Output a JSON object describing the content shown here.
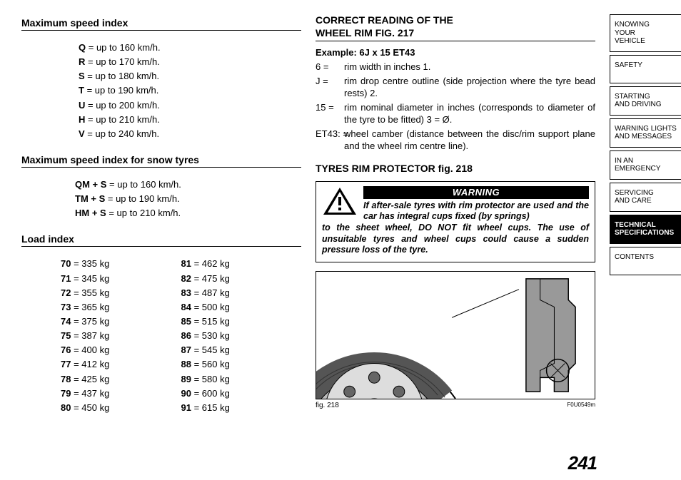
{
  "left": {
    "speed_title": "Maximum speed index",
    "speeds": [
      {
        "c": "Q",
        "v": "= up to 160 km/h."
      },
      {
        "c": "R",
        "v": "= up to 170 km/h."
      },
      {
        "c": "S",
        "v": "= up to 180 km/h."
      },
      {
        "c": "T",
        "v": "= up to 190 km/h."
      },
      {
        "c": "U",
        "v": "= up to 200 km/h."
      },
      {
        "c": "H",
        "v": "= up to 210 km/h."
      },
      {
        "c": "V",
        "v": "= up to 240 km/h."
      }
    ],
    "snow_title": "Maximum speed index for snow tyres",
    "snow": [
      {
        "c": "QM + S",
        "v": "= up to 160 km/h."
      },
      {
        "c": "TM + S",
        "v": "= up to 190 km/h."
      },
      {
        "c": "HM + S",
        "v": "= up to 210 km/h."
      }
    ],
    "load_title": "Load index",
    "load_a": [
      {
        "c": "70",
        "v": "= 335 kg"
      },
      {
        "c": "71",
        "v": "= 345 kg"
      },
      {
        "c": "72",
        "v": "= 355 kg"
      },
      {
        "c": "73",
        "v": "= 365 kg"
      },
      {
        "c": "74",
        "v": "= 375 kg"
      },
      {
        "c": "75",
        "v": "= 387 kg"
      },
      {
        "c": "76",
        "v": "= 400 kg"
      },
      {
        "c": "77",
        "v": "= 412 kg"
      },
      {
        "c": "78",
        "v": "= 425 kg"
      },
      {
        "c": "79",
        "v": "= 437 kg"
      },
      {
        "c": "80",
        "v": "= 450 kg"
      }
    ],
    "load_b": [
      {
        "c": "81",
        "v": "= 462 kg"
      },
      {
        "c": "82",
        "v": "= 475 kg"
      },
      {
        "c": "83",
        "v": "= 487 kg"
      },
      {
        "c": "84",
        "v": "= 500 kg"
      },
      {
        "c": "85",
        "v": "= 515 kg"
      },
      {
        "c": "86",
        "v": "= 530 kg"
      },
      {
        "c": "87",
        "v": "= 545 kg"
      },
      {
        "c": "88",
        "v": "= 560 kg"
      },
      {
        "c": "89",
        "v": "= 580 kg"
      },
      {
        "c": "90",
        "v": "= 600 kg"
      },
      {
        "c": "91",
        "v": "= 615 kg"
      }
    ]
  },
  "right": {
    "title_line1": "CORRECT READING OF THE",
    "title_line2": "WHEEL RIM fig. 217",
    "example": "Example: 6J x 15 ET43",
    "defs": [
      {
        "k": "6 =",
        "v": "rim width in inches 1."
      },
      {
        "k": "J =",
        "v": "rim drop centre outline (side projection where the tyre bead rests) 2."
      },
      {
        "k": "15 =",
        "v": "rim nominal diameter in inches (corresponds to diameter of the tyre to be fitted) 3 = Ø."
      },
      {
        "k": "ET43: =",
        "v": "wheel camber (distance between the disc/rim support plane and the wheel rim centre line)."
      }
    ],
    "sub": "TYRES RIM PROTECTOR fig. 218",
    "warning_label": "WARNING",
    "warning_text": "If after-sale tyres with rim protector are used and the car has integral cups fixed (by springs) to the sheet wheel, DO NOT fit wheel cups. The use of unsuitable tyres and wheel cups could cause a sudden pressure loss of the tyre.",
    "fig_label": "fig. 218",
    "fig_code": "F0U0549m"
  },
  "tabs": [
    {
      "label": "KNOWING\nYOUR\nVEHICLE",
      "active": false
    },
    {
      "label": "SAFETY",
      "active": false
    },
    {
      "label": "STARTING\nAND DRIVING",
      "active": false
    },
    {
      "label": "WARNING LIGHTS\nAND MESSAGES",
      "active": false
    },
    {
      "label": "IN AN\nEMERGENCY",
      "active": false
    },
    {
      "label": "SERVICING\nAND CARE",
      "active": false
    },
    {
      "label": "TECHNICAL\nSPECIFICATIONS",
      "active": true
    },
    {
      "label": "CONTENTS",
      "active": false
    }
  ],
  "page_number": "241"
}
